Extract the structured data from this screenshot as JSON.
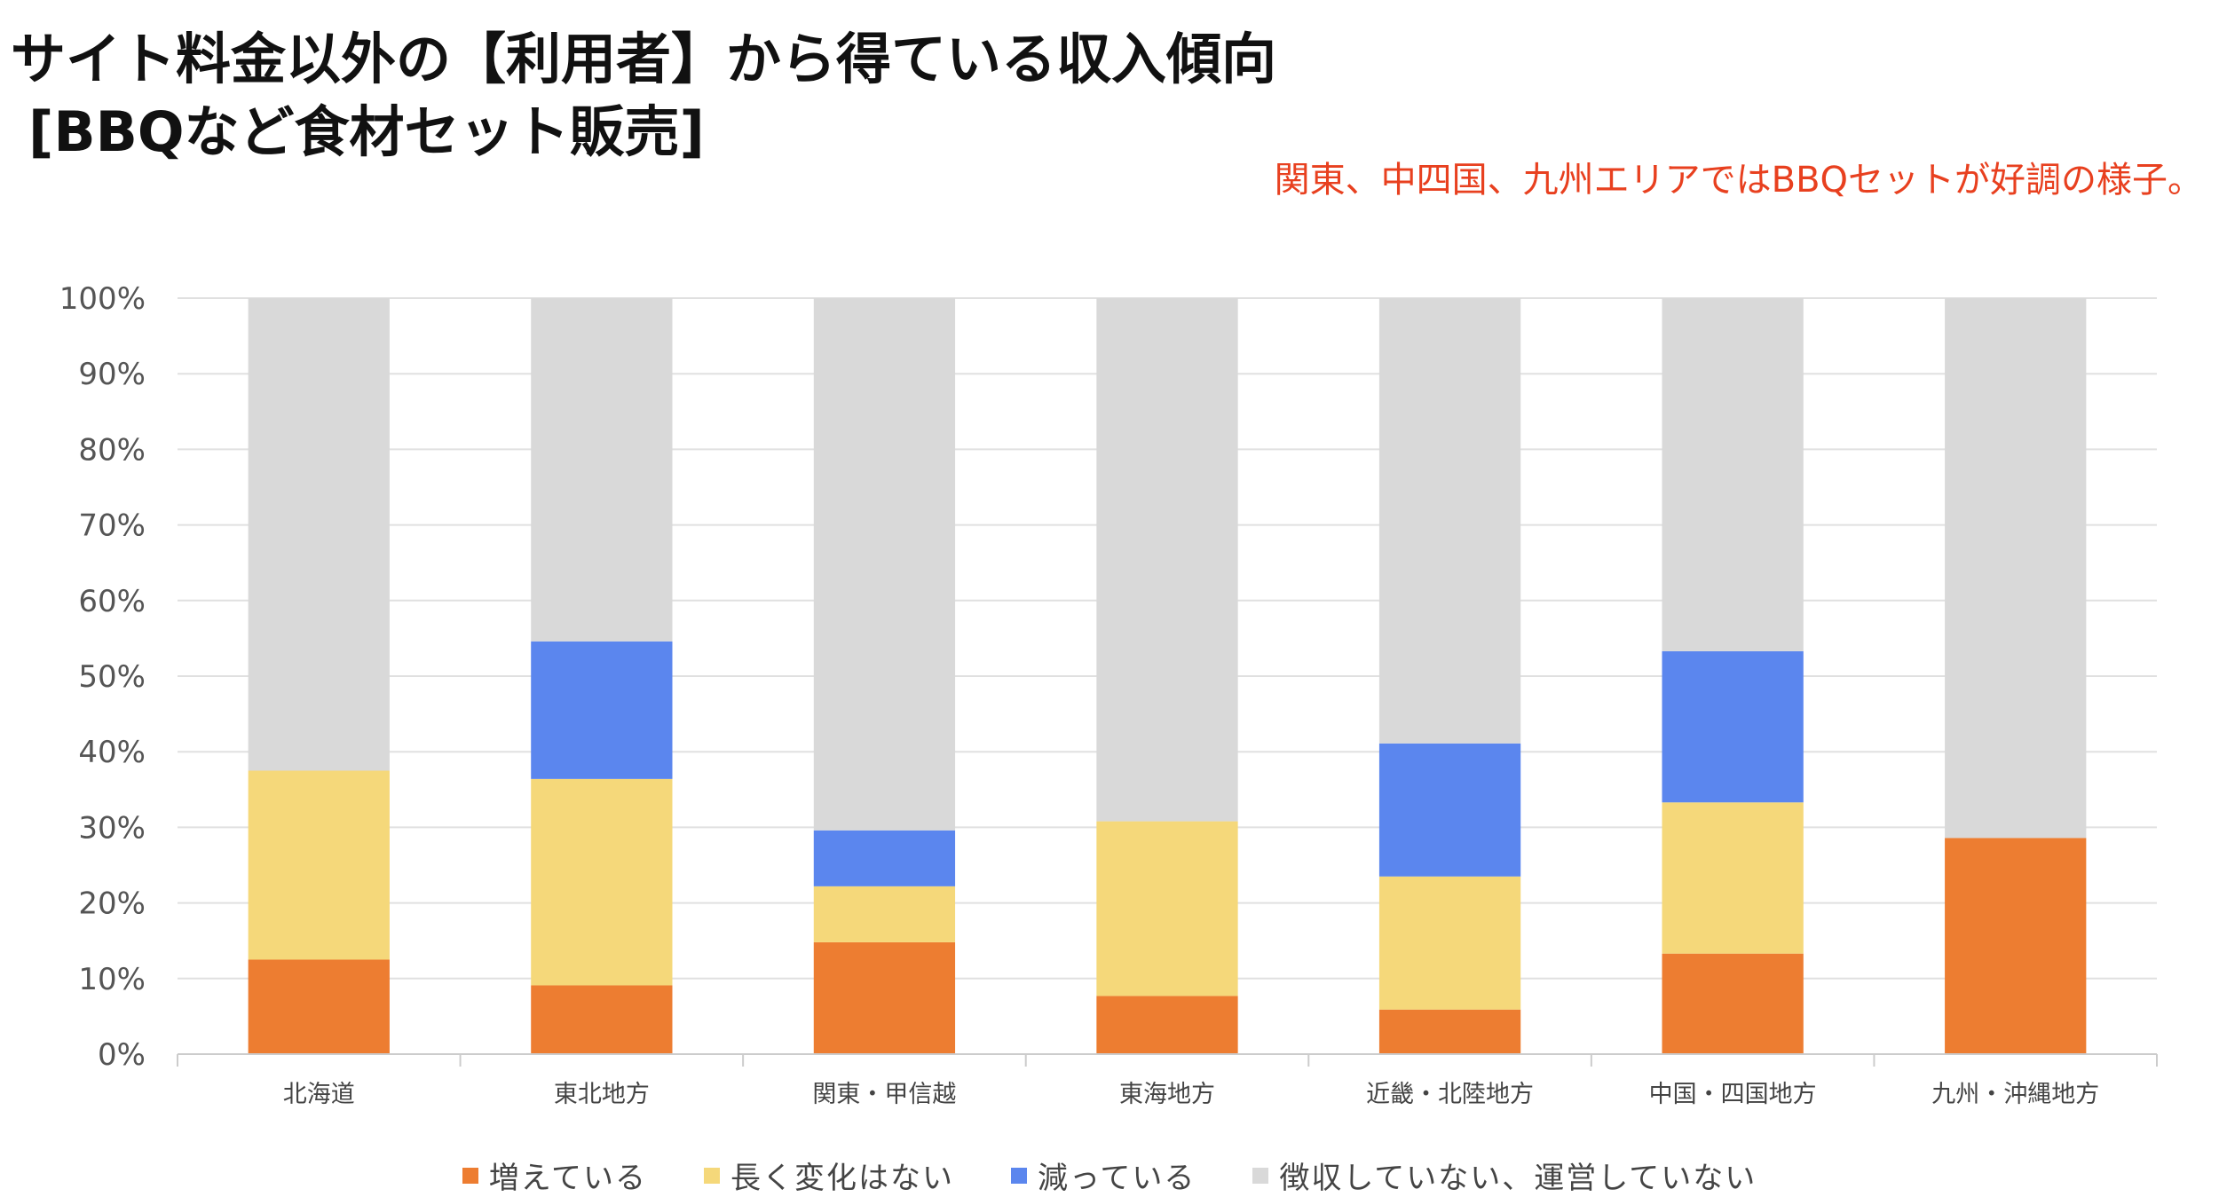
{
  "header": {
    "title": "サイト料金以外の【利用者】から得ている収入傾向",
    "subtitle": "[BBQなど食材セット販売]",
    "annotation": "関東、中四国、九州エリアではBBQセットが好調の様子。"
  },
  "colors": {
    "increase": "#ed7d31",
    "unchanged": "#f5d87a",
    "decrease": "#5b86ee",
    "none": "#d9d9d9",
    "grid": "#e0e0e0",
    "axis": "#cccccc"
  },
  "chart_data": {
    "type": "bar",
    "stacked": true,
    "title": "サイト料金以外の【利用者】から得ている収入傾向 [BBQなど食材セット販売]",
    "xlabel": "",
    "ylabel": "",
    "ylim": [
      0,
      100
    ],
    "yticks": [
      "0%",
      "10%",
      "20%",
      "30%",
      "40%",
      "50%",
      "60%",
      "70%",
      "80%",
      "90%",
      "100%"
    ],
    "grid": true,
    "legend_position": "bottom",
    "categories": [
      "北海道",
      "東北地方",
      "関東・甲信越",
      "東海地方",
      "近畿・北陸地方",
      "中国・四国地方",
      "九州・沖縄地方"
    ],
    "series": [
      {
        "name": "増えている",
        "color_key": "increase",
        "values": [
          12.5,
          9.1,
          14.8,
          7.7,
          5.9,
          13.3,
          28.6
        ]
      },
      {
        "name": "長く変化はない",
        "color_key": "unchanged",
        "values": [
          25.0,
          27.3,
          7.4,
          23.1,
          17.6,
          20.0,
          0
        ]
      },
      {
        "name": "減っている",
        "color_key": "decrease",
        "values": [
          0,
          18.2,
          7.4,
          0,
          17.6,
          20.0,
          0
        ]
      },
      {
        "name": "徴収していない、運営していない",
        "color_key": "none",
        "values": [
          62.5,
          45.4,
          70.4,
          69.2,
          58.9,
          46.7,
          71.4
        ]
      }
    ]
  }
}
